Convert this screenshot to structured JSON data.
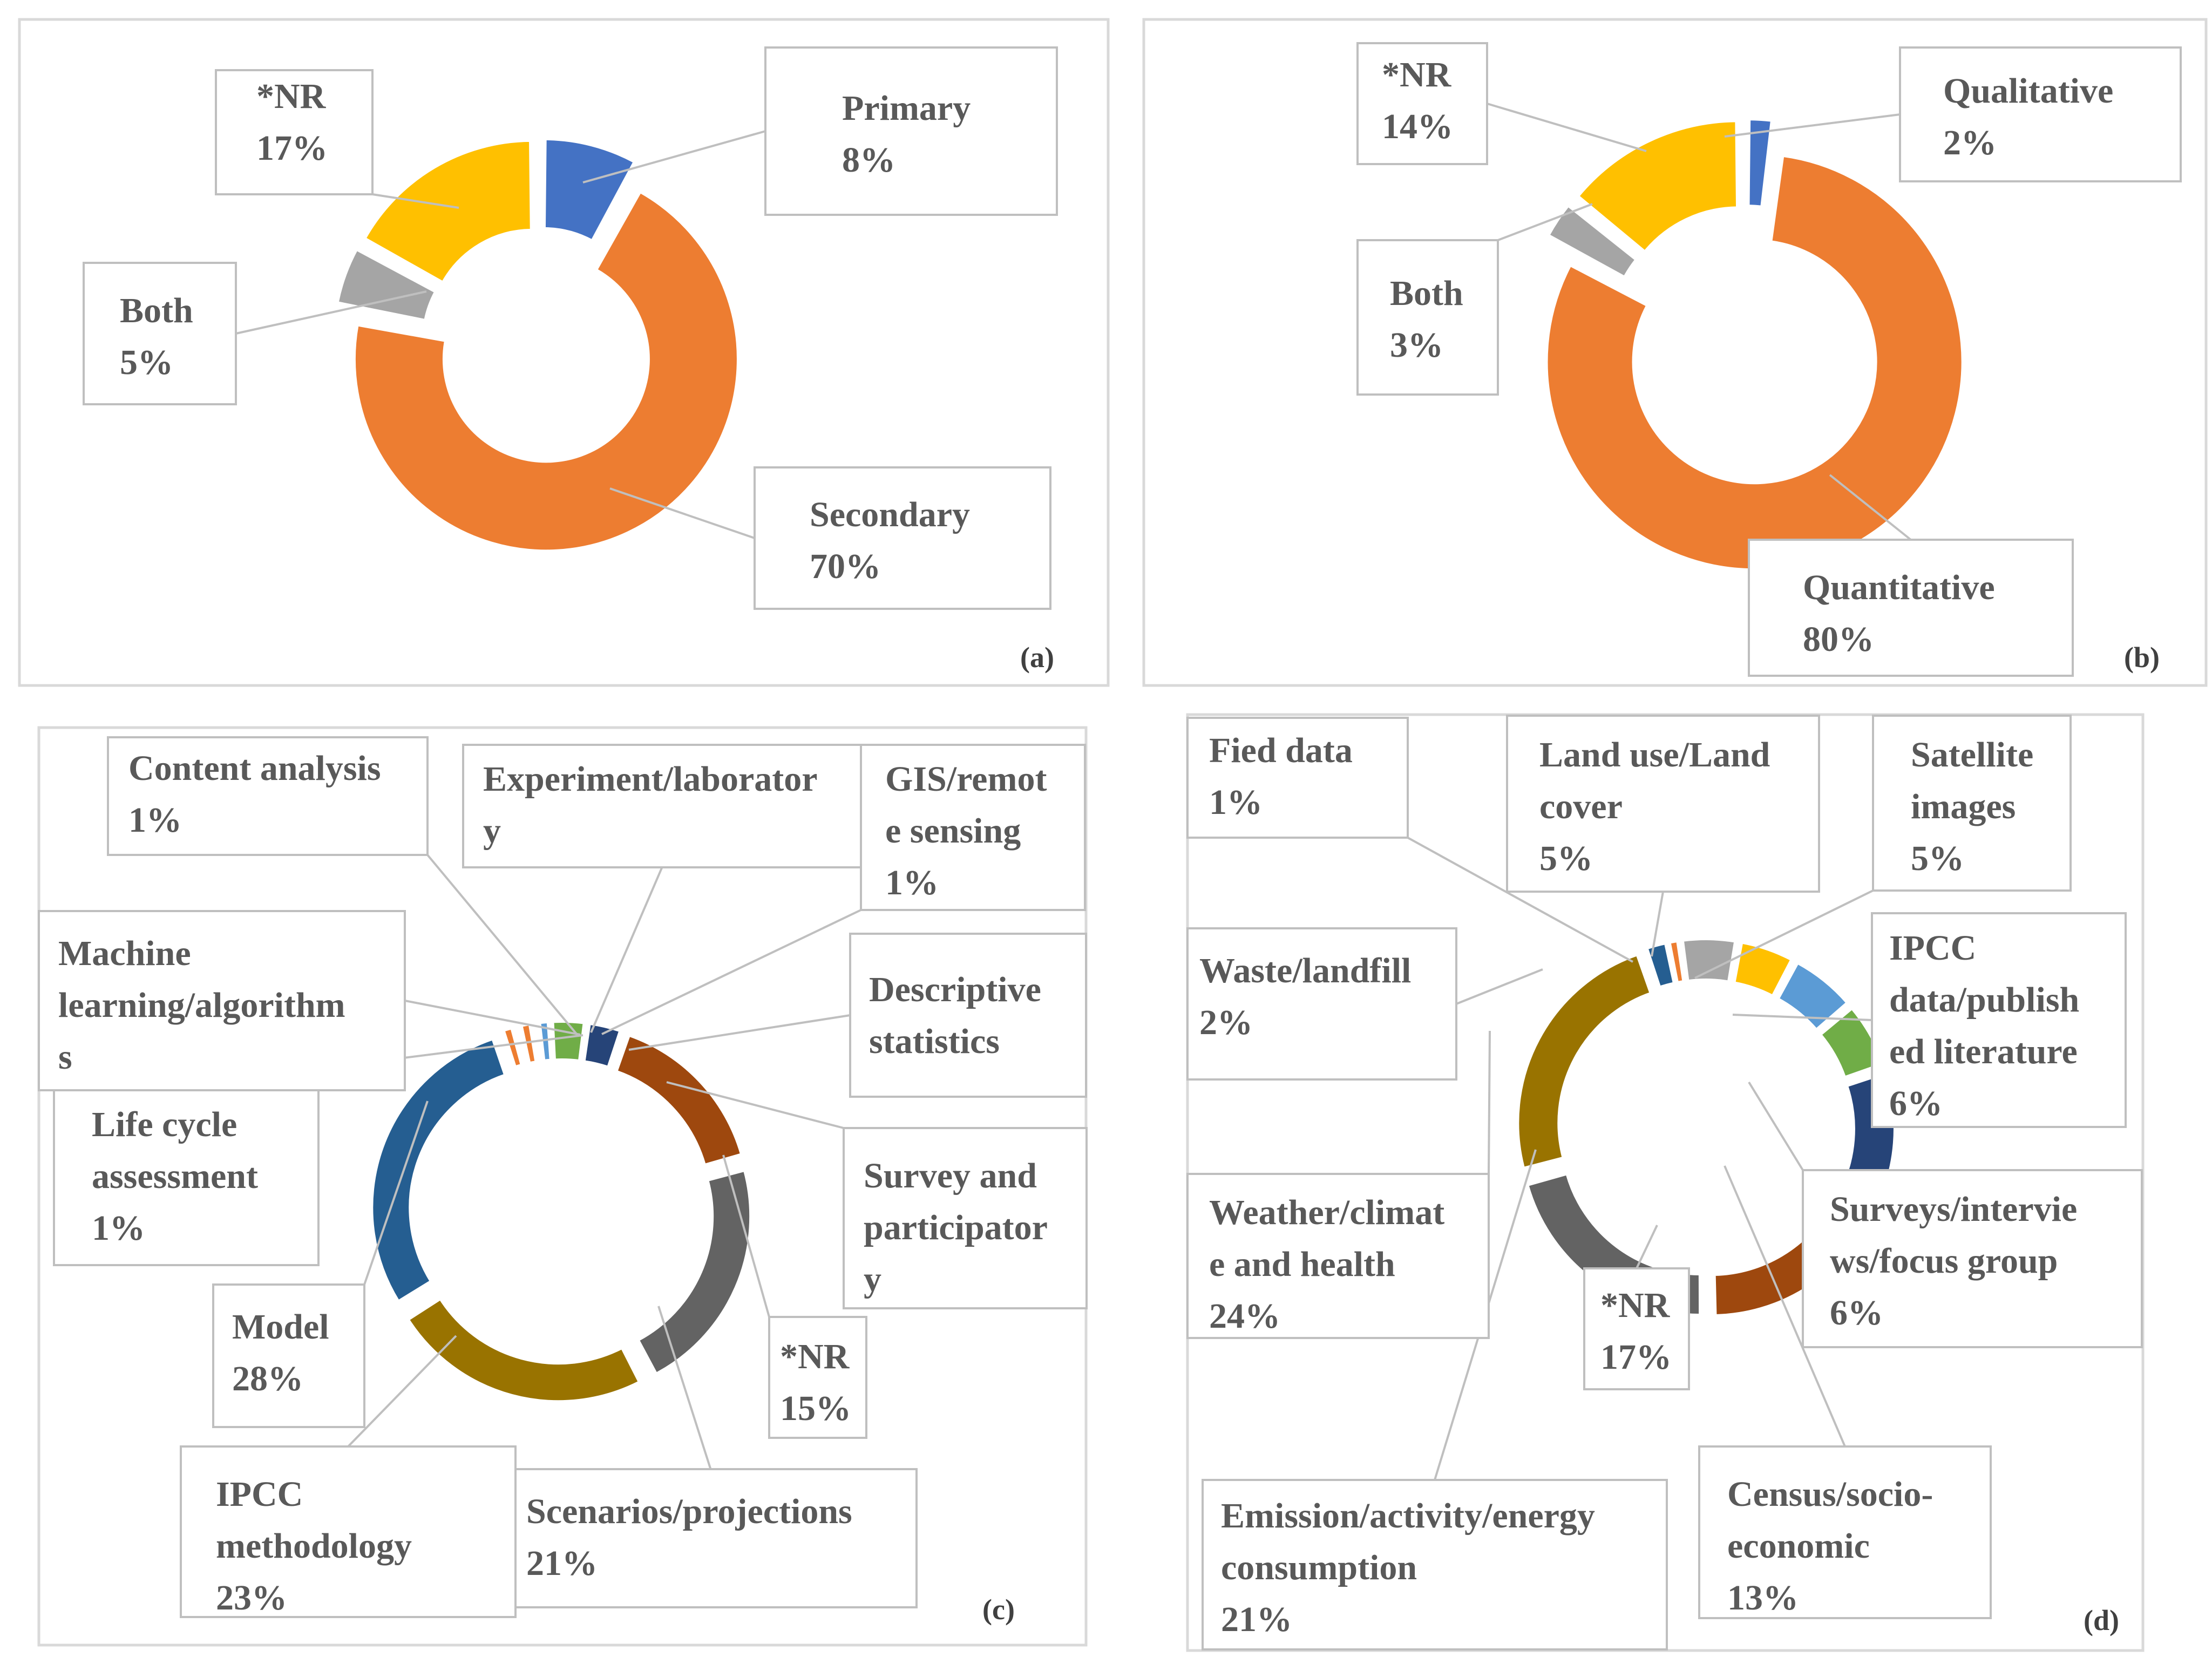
{
  "colors": {
    "blue": "#4472C4",
    "orange": "#ED7D31",
    "gray": "#A5A5A5",
    "gold": "#FFC000",
    "lightblue": "#5B9BD5",
    "green": "#70AD47",
    "navy": "#264478",
    "rust": "#9E480E",
    "darkgray": "#636363",
    "olive": "#997300",
    "steelblue": "#255E91"
  },
  "chart_data": [
    {
      "panel": "(a)",
      "type": "pie",
      "variant": "exploded-doughnut",
      "series": [
        {
          "name": "Primary",
          "label": "8%",
          "value": 8,
          "color": "#4472C4"
        },
        {
          "name": "Secondary",
          "label": "70%",
          "value": 70,
          "color": "#ED7D31"
        },
        {
          "name": "Both",
          "label": "5%",
          "value": 5,
          "color": "#A5A5A5"
        },
        {
          "name": "*NR",
          "label": "17%",
          "value": 17,
          "color": "#FFC000"
        }
      ]
    },
    {
      "panel": "(b)",
      "type": "pie",
      "variant": "exploded-doughnut",
      "series": [
        {
          "name": "Qualitative",
          "label": "2%",
          "value": 2,
          "color": "#4472C4"
        },
        {
          "name": "Quantitative",
          "label": "80%",
          "value": 80,
          "color": "#ED7D31"
        },
        {
          "name": "Both",
          "label": "3%",
          "value": 3,
          "color": "#A5A5A5"
        },
        {
          "name": "*NR",
          "label": "14%",
          "value": 14,
          "color": "#FFC000"
        }
      ]
    },
    {
      "panel": "(c)",
      "type": "pie",
      "variant": "exploded-doughnut",
      "series": [
        {
          "name": "Experiment/laborator y",
          "label": "",
          "value": 0.5,
          "color": "#FFC000"
        },
        {
          "name": "GIS/remot e sensing",
          "label": "1%",
          "value": 1,
          "color": "#5B9BD5"
        },
        {
          "name": "Descriptive statistics",
          "label": "",
          "value": 3,
          "color": "#70AD47"
        },
        {
          "name": "Survey and participator y",
          "label": "",
          "value": 3,
          "color": "#264478"
        },
        {
          "name": "*NR",
          "label": "15%",
          "value": 15,
          "color": "#9E480E"
        },
        {
          "name": "Scenarios/projections",
          "label": "21%",
          "value": 21,
          "color": "#636363"
        },
        {
          "name": "IPCC methodology",
          "label": "23%",
          "value": 23,
          "color": "#997300"
        },
        {
          "name": "Model",
          "label": "28%",
          "value": 28,
          "color": "#255E91"
        },
        {
          "name": "Life cycle assessment",
          "label": "1%",
          "value": 1,
          "color": "#ED7D31"
        },
        {
          "name": "Machine learning/algorithm s",
          "label": "",
          "value": 0.5,
          "color": "#A5A5A5"
        },
        {
          "name": "Content analysis",
          "label": "1%",
          "value": 1,
          "color": "#ED7D31"
        }
      ]
    },
    {
      "panel": "(d)",
      "type": "pie",
      "variant": "exploded-doughnut",
      "series": [
        {
          "name": "Land use/Land cover",
          "label": "5%",
          "value": 5,
          "color": "#A5A5A5"
        },
        {
          "name": "Satellite images",
          "label": "5%",
          "value": 5,
          "color": "#FFC000"
        },
        {
          "name": "IPCC data/publish ed literature",
          "label": "6%",
          "value": 6,
          "color": "#5B9BD5"
        },
        {
          "name": "Surveys/intervie ws/focus group",
          "label": "6%",
          "value": 6,
          "color": "#70AD47"
        },
        {
          "name": "Census/socio- economic",
          "label": "13%",
          "value": 13,
          "color": "#264478"
        },
        {
          "name": "*NR",
          "label": "17%",
          "value": 17,
          "color": "#9E480E"
        },
        {
          "name": "Emission/activity/energy consumption",
          "label": "21%",
          "value": 21,
          "color": "#636363"
        },
        {
          "name": "Weather/climat e and health",
          "label": "24%",
          "value": 24,
          "color": "#997300"
        },
        {
          "name": "Waste/landfill",
          "label": "2%",
          "value": 2,
          "color": "#255E91"
        },
        {
          "name": "Fied data",
          "label": "1%",
          "value": 1,
          "color": "#ED7D31"
        }
      ]
    }
  ]
}
